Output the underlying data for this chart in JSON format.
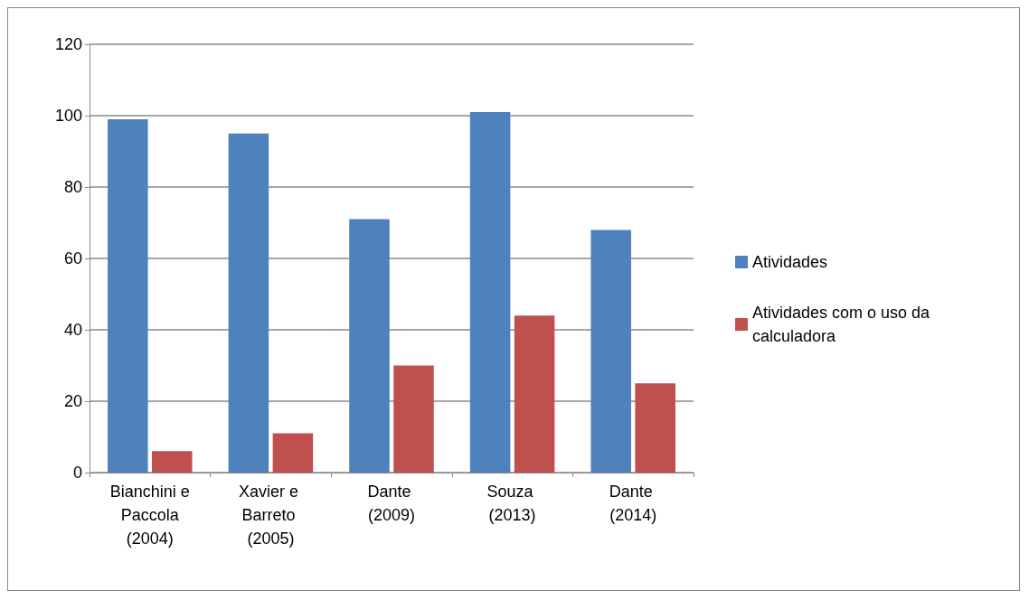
{
  "chart_data": {
    "type": "bar",
    "categories": [
      "Bianchini e Paccola (2004)",
      "Xavier e Barreto (2005)",
      "Dante (2009)",
      "Souza (2013)",
      "Dante (2014)"
    ],
    "series": [
      {
        "name": "Atividades",
        "color": "#4f81bd",
        "values": [
          99,
          95,
          71,
          101,
          68
        ]
      },
      {
        "name": "Atividades com o uso da calculadora",
        "color": "#c0504d",
        "values": [
          6,
          11,
          30,
          44,
          25
        ]
      }
    ],
    "ylim": [
      0,
      120
    ],
    "yticks": [
      0,
      20,
      40,
      60,
      80,
      100,
      120
    ],
    "grid": "y",
    "legend": "right"
  }
}
